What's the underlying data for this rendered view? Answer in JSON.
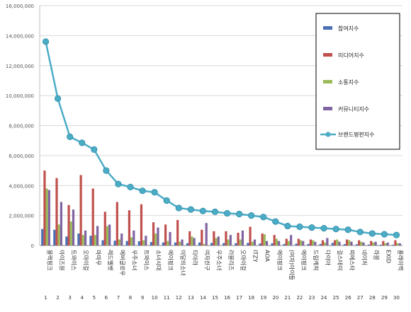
{
  "chart_data": {
    "type": "bar",
    "ylim": [
      0,
      16000000
    ],
    "yticks": [
      0,
      2000000,
      4000000,
      6000000,
      8000000,
      10000000,
      12000000,
      14000000,
      16000000
    ],
    "ytick_labels": [
      "0",
      "2,000,000",
      "4,000,000",
      "6,000,000",
      "8,000,000",
      "10,000,000",
      "12,000,000",
      "14,000,000",
      "16,000,000"
    ],
    "grid": true,
    "legend_position": "right",
    "categories": [
      "블랙핑크",
      "아이즈원",
      "트와이스",
      "오마이걸",
      "마마무",
      "레드벨벳",
      "에버글로우",
      "우주소녀",
      "트와이스",
      "소녀시대",
      "에이핑크",
      "이달의소녀",
      "티아라",
      "여자친구",
      "우주소녀",
      "러블리즈",
      "오마이걸",
      "ITZY",
      "AOA",
      "에이핑크",
      "(여자)아이들",
      "에이핑크",
      "드림캐쳐",
      "다이아",
      "걸스데이",
      "피에스타",
      "네이처",
      "라붐",
      "EXID",
      "플레이백"
    ],
    "ranks": [
      "1",
      "2",
      "3",
      "4",
      "5",
      "6",
      "7",
      "8",
      "9",
      "10",
      "11",
      "12",
      "13",
      "14",
      "15",
      "16",
      "17",
      "18",
      "19",
      "20",
      "21",
      "22",
      "23",
      "24",
      "25",
      "26",
      "27",
      "28",
      "29",
      "30"
    ],
    "series": [
      {
        "name": "참여지수",
        "kind": "bar",
        "color": "#4a6fb5",
        "values": [
          1100000,
          1050000,
          600000,
          800000,
          650000,
          350000,
          320000,
          300000,
          280000,
          230000,
          200000,
          200000,
          150000,
          200000,
          170000,
          160000,
          150000,
          170000,
          130000,
          140000,
          100000,
          120000,
          100000,
          100000,
          170000,
          90000,
          80000,
          60000,
          50000,
          50000
        ]
      },
      {
        "name": "미디어지수",
        "kind": "bar",
        "color": "#c0504d",
        "values": [
          5000000,
          4500000,
          2700000,
          4700000,
          3800000,
          2250000,
          2900000,
          2350000,
          2750000,
          1550000,
          1400000,
          1700000,
          950000,
          1050000,
          950000,
          950000,
          850000,
          1250000,
          800000,
          700000,
          450000,
          450000,
          400000,
          350000,
          350000,
          400000,
          350000,
          300000,
          300000,
          350000
        ]
      },
      {
        "name": "소통지수",
        "kind": "bar",
        "color": "#9bbb59",
        "values": [
          3800000,
          1400000,
          1600000,
          700000,
          700000,
          1300000,
          400000,
          550000,
          350000,
          800000,
          300000,
          250000,
          600000,
          100000,
          500000,
          400000,
          400000,
          250000,
          750000,
          450000,
          300000,
          350000,
          350000,
          200000,
          400000,
          350000,
          250000,
          200000,
          150000,
          150000
        ]
      },
      {
        "name": "커뮤니티지수",
        "kind": "bar",
        "color": "#8064a2",
        "values": [
          3700000,
          2900000,
          2400000,
          1000000,
          1300000,
          1400000,
          800000,
          1000000,
          650000,
          1200000,
          900000,
          400000,
          500000,
          1500000,
          600000,
          700000,
          1000000,
          400000,
          300000,
          300000,
          700000,
          300000,
          250000,
          500000,
          250000,
          250000,
          200000,
          250000,
          200000,
          150000
        ]
      },
      {
        "name": "브랜드평판지수",
        "kind": "line",
        "color": "#4bacc6",
        "values": [
          13600000,
          9800000,
          7250000,
          6850000,
          6400000,
          5000000,
          4100000,
          3900000,
          3650000,
          3550000,
          3000000,
          2500000,
          2400000,
          2300000,
          2250000,
          2150000,
          2100000,
          2000000,
          1900000,
          1600000,
          1300000,
          1250000,
          1200000,
          1150000,
          1100000,
          1050000,
          900000,
          800000,
          750000,
          700000
        ]
      }
    ]
  }
}
